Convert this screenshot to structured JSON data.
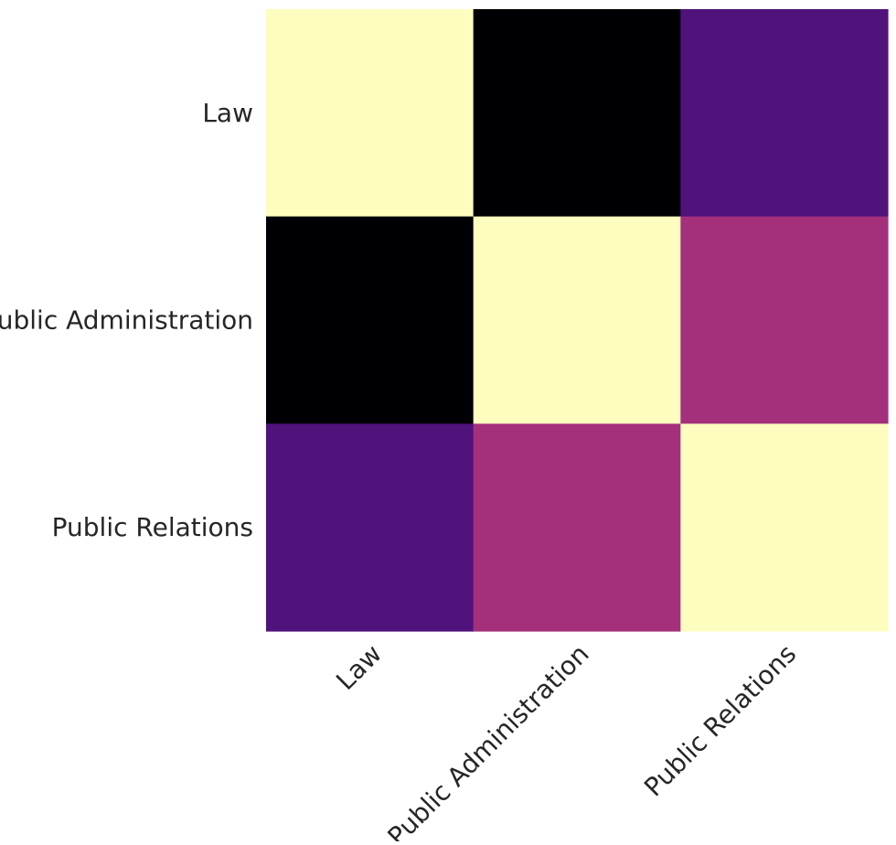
{
  "chart_data": {
    "type": "heatmap",
    "title": "",
    "xlabel": "",
    "ylabel": "",
    "x_labels": [
      "Law",
      "Public Administration",
      "Public Relations"
    ],
    "y_labels": [
      "Law",
      "Public Administration",
      "Public Relations"
    ],
    "values": [
      [
        1.0,
        -0.5,
        -0.12
      ],
      [
        -0.5,
        1.0,
        0.19
      ],
      [
        -0.12,
        0.19,
        1.0
      ]
    ],
    "color_range": [
      -0.5,
      1.0
    ],
    "colormap": "magma",
    "colors": {
      "high": "#fcfdbf",
      "low": "#000004",
      "background": "#ffffff",
      "text": "#262626"
    },
    "show_colorbar": false,
    "show_values": false,
    "grid": false
  }
}
